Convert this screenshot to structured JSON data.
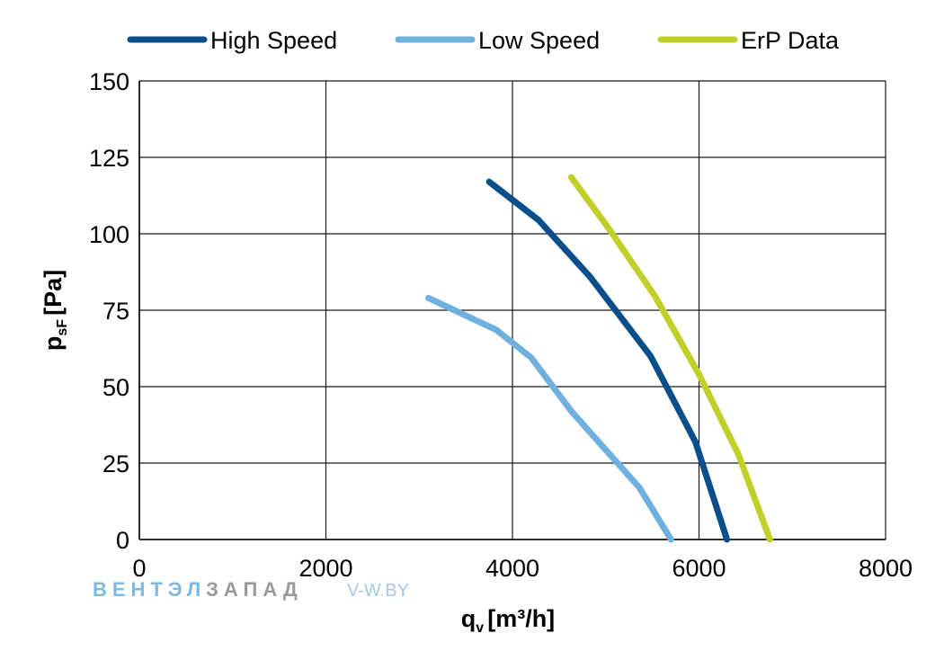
{
  "chart_data": {
    "type": "line",
    "x_ticks": [
      "0",
      "2000",
      "4000",
      "6000",
      "8000"
    ],
    "y_ticks": [
      "0",
      "25",
      "50",
      "75",
      "100",
      "125",
      "150"
    ],
    "xlim": [
      0,
      8000
    ],
    "ylim": [
      0,
      150
    ],
    "grid": true,
    "legend_position": "top",
    "xlabel": {
      "main": "q",
      "sub": "v",
      "unit": "[m³/h]"
    },
    "ylabel": {
      "main": "p",
      "sub": "sF",
      "unit": "[Pa]"
    },
    "series": [
      {
        "name": "High Speed",
        "color": "#0a4f8c",
        "points": [
          [
            3750,
            117
          ],
          [
            4280,
            104.5
          ],
          [
            4830,
            86
          ],
          [
            5480,
            60
          ],
          [
            5960,
            32
          ],
          [
            6300,
            0
          ]
        ]
      },
      {
        "name": "Low Speed",
        "color": "#6fb0df",
        "points": [
          [
            3100,
            79
          ],
          [
            3830,
            68.5
          ],
          [
            4200,
            59.5
          ],
          [
            4630,
            42
          ],
          [
            5360,
            17
          ],
          [
            5700,
            0
          ]
        ]
      },
      {
        "name": "ErP Data",
        "color": "#c1cf28",
        "points": [
          [
            4630,
            118.5
          ],
          [
            5050,
            101
          ],
          [
            5530,
            79.5
          ],
          [
            6000,
            54
          ],
          [
            6420,
            28
          ],
          [
            6760,
            0
          ]
        ]
      }
    ]
  },
  "watermark": {
    "part1": "ВЕНТЭЛ",
    "part2": "ЗАПАД",
    "site": "V-W.BY",
    "color1": "#7cb9e0",
    "color2": "#9a9a9a",
    "color3": "#a8c8e4"
  }
}
